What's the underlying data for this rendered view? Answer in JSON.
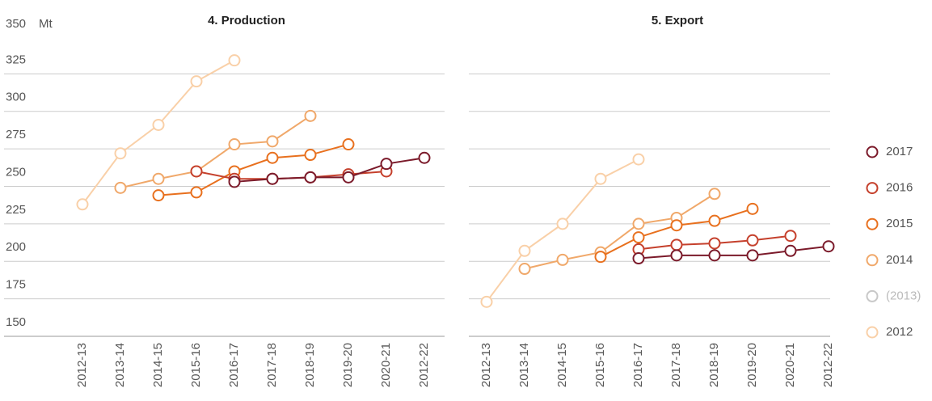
{
  "chart_data": [
    {
      "type": "line",
      "title": "4. Production",
      "y_unit": "Mt",
      "categories": [
        "2012-13",
        "2013-14",
        "2014-15",
        "2015-16",
        "2016-17",
        "2017-18",
        "2018-19",
        "2019-20",
        "2020-21",
        "2012-22"
      ],
      "ylim": [
        150,
        350
      ],
      "yticks": [
        150,
        175,
        200,
        225,
        250,
        275,
        300,
        325,
        350
      ],
      "grid": true,
      "series": [
        {
          "name": "2017",
          "color": "#7b1a2a",
          "values": [
            null,
            null,
            null,
            null,
            253,
            255,
            256,
            256,
            265,
            269
          ]
        },
        {
          "name": "2016",
          "color": "#c5402c",
          "values": [
            null,
            null,
            null,
            260,
            255,
            255,
            256,
            258,
            260,
            null
          ]
        },
        {
          "name": "2015",
          "color": "#e8701e",
          "values": [
            null,
            null,
            244,
            246,
            260,
            269,
            271,
            278,
            null,
            null
          ]
        },
        {
          "name": "2014",
          "color": "#f0a86a",
          "values": [
            null,
            249,
            255,
            260,
            278,
            280,
            297,
            null,
            null,
            null
          ]
        },
        {
          "name": "(2013)",
          "color": "#c8c8c8",
          "values": [
            null,
            null,
            null,
            null,
            null,
            null,
            null,
            null,
            null,
            null
          ]
        },
        {
          "name": "2012",
          "color": "#f9d0a8",
          "values": [
            238,
            272,
            291,
            320,
            334,
            null,
            null,
            null,
            null,
            null
          ]
        }
      ]
    },
    {
      "type": "line",
      "title": "5. Export",
      "categories": [
        "2012-13",
        "2013-14",
        "2014-15",
        "2015-16",
        "2016-17",
        "2017-18",
        "2018-19",
        "2019-20",
        "2020-21",
        "2012-22"
      ],
      "ylim": [
        150,
        350
      ],
      "yticks": [
        150,
        175,
        200,
        225,
        250,
        275,
        300,
        325,
        350
      ],
      "grid": true,
      "series": [
        {
          "name": "2017",
          "color": "#7b1a2a",
          "values": [
            null,
            null,
            null,
            null,
            202,
            204,
            204,
            204,
            207,
            210
          ]
        },
        {
          "name": "2016",
          "color": "#c5402c",
          "values": [
            null,
            null,
            null,
            null,
            208,
            211,
            212,
            214,
            217,
            null
          ]
        },
        {
          "name": "2015",
          "color": "#e8701e",
          "values": [
            null,
            null,
            null,
            203,
            216,
            224,
            227,
            235,
            null,
            null
          ]
        },
        {
          "name": "2014",
          "color": "#f0a86a",
          "values": [
            null,
            195,
            201,
            206,
            225,
            229,
            245,
            null,
            null,
            null
          ]
        },
        {
          "name": "(2013)",
          "color": "#c8c8c8",
          "values": [
            null,
            null,
            null,
            null,
            null,
            null,
            null,
            null,
            null,
            null
          ]
        },
        {
          "name": "2012",
          "color": "#f9d0a8",
          "values": [
            173,
            207,
            225,
            255,
            268,
            null,
            null,
            null,
            null,
            null
          ]
        }
      ]
    }
  ]
}
